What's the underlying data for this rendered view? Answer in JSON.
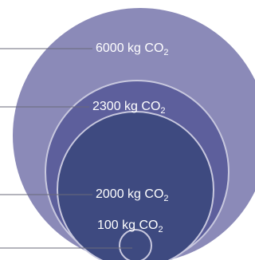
{
  "diagram": {
    "colors": {
      "outer_fill": "#8b8ab8",
      "middle_fill": "#5d5f9c",
      "inner_fill": "#3e4a80",
      "rings": "#c8c8de",
      "leaders": "#6a6a7a"
    },
    "levels": [
      {
        "value": "6000 kg CO",
        "subscript": "2"
      },
      {
        "value": "2300 kg CO",
        "subscript": "2"
      },
      {
        "value": "2000 kg CO",
        "subscript": "2"
      },
      {
        "value": "100 kg CO",
        "subscript": "2"
      }
    ]
  }
}
